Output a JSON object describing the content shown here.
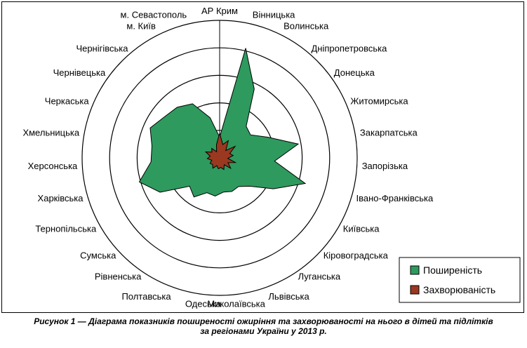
{
  "chart_data": {
    "type": "radar",
    "categories": [
      "АР Крим",
      "Вінницька",
      "Волинська",
      "Дніпропетровська",
      "Донецька",
      "Житомирська",
      "Закарпатська",
      "Запорізька",
      "Івано-Франківська",
      "Київська",
      "Кіровоградська",
      "Луганська",
      "Львівська",
      "Миколаївська",
      "Одеська",
      "Полтавська",
      "Рівненська",
      "Сумська",
      "Тернопільська",
      "Харківська",
      "Херсонська",
      "Хмельницька",
      "Черкаська",
      "Чернівецька",
      "Чернігівська",
      "м. Київ",
      "м. Севастополь"
    ],
    "rlim": [
      0,
      1
    ],
    "grid": true,
    "legend_position": "bottom-right",
    "series": [
      {
        "name": "Поширеність",
        "color": "#2e9a5e",
        "values": [
          0.15,
          0.82,
          0.56,
          0.3,
          0.28,
          0.38,
          0.58,
          0.4,
          0.65,
          0.45,
          0.3,
          0.25,
          0.26,
          0.25,
          0.28,
          0.27,
          0.34,
          0.3,
          0.5,
          0.61,
          0.5,
          0.5,
          0.55,
          0.5,
          0.48,
          0.44,
          0.3
        ]
      },
      {
        "name": "Захворюваність",
        "color": "#9a3820",
        "values": [
          0.18,
          0.1,
          0.14,
          0.07,
          0.14,
          0.08,
          0.1,
          0.06,
          0.12,
          0.07,
          0.11,
          0.06,
          0.09,
          0.07,
          0.08,
          0.06,
          0.09,
          0.07,
          0.08,
          0.06,
          0.09,
          0.07,
          0.11,
          0.07,
          0.09,
          0.05,
          0.1
        ]
      }
    ]
  },
  "caption": {
    "line1": "Рисунок 1 — Діаграма показників поширеності ожиріння та захворюваності на нього в дітей та підлітків",
    "line2": "за регіонами України у 2013 р."
  }
}
